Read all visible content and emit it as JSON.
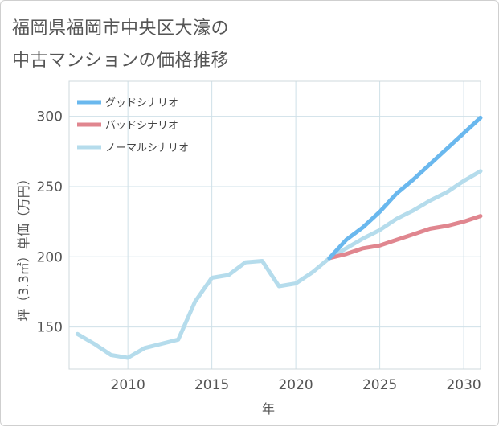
{
  "title": {
    "line1": "福岡県福岡市中央区大濠の",
    "line2": "中古マンションの価格推移"
  },
  "chart_data": {
    "type": "line",
    "title": "福岡県福岡市中央区大濠の中古マンションの価格推移",
    "xlabel": "年",
    "ylabel": "坪（3.3㎡）単価（万円）",
    "xlim": [
      2006.5,
      2031
    ],
    "ylim": [
      120,
      325
    ],
    "xticks": [
      2010,
      2015,
      2020,
      2025,
      2030
    ],
    "yticks": [
      150,
      200,
      250,
      300
    ],
    "grid": true,
    "legend_position": "top-left",
    "series": [
      {
        "name": "グッドシナリオ",
        "color": "#6ab8ee",
        "x": [
          2022,
          2023,
          2024,
          2025,
          2026,
          2027,
          2028,
          2029,
          2030,
          2031
        ],
        "values": [
          199,
          212,
          221,
          232,
          245,
          255,
          266,
          277,
          288,
          299
        ]
      },
      {
        "name": "バッドシナリオ",
        "color": "#e0868f",
        "x": [
          2022,
          2023,
          2024,
          2025,
          2026,
          2027,
          2028,
          2029,
          2030,
          2031
        ],
        "values": [
          199,
          202,
          206,
          208,
          212,
          216,
          220,
          222,
          225,
          229
        ]
      },
      {
        "name": "ノーマルシナリオ",
        "color": "#b5dcec",
        "x": [
          2007,
          2008,
          2009,
          2010,
          2011,
          2012,
          2013,
          2014,
          2015,
          2016,
          2017,
          2018,
          2019,
          2020,
          2021,
          2022,
          2023,
          2024,
          2025,
          2026,
          2027,
          2028,
          2029,
          2030,
          2031
        ],
        "values": [
          145,
          138,
          130,
          128,
          135,
          138,
          141,
          168,
          185,
          187,
          196,
          197,
          179,
          181,
          189,
          199,
          206,
          213,
          219,
          227,
          233,
          240,
          246,
          254,
          261
        ]
      }
    ]
  }
}
